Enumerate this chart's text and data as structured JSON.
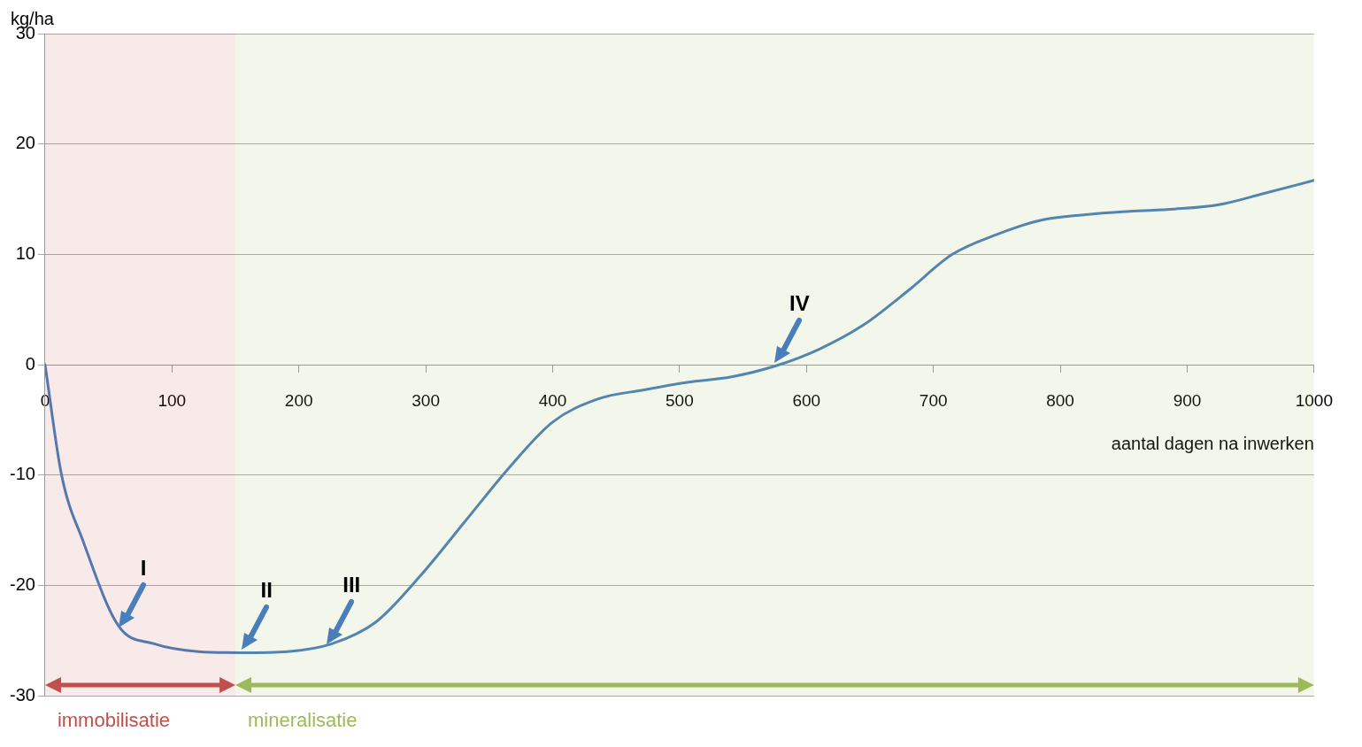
{
  "chart_data": {
    "type": "line",
    "ylabel": "kg/ha",
    "xlabel": "aantal dagen na inwerken",
    "x": [
      0,
      13,
      30,
      58,
      86,
      121,
      156,
      191,
      226,
      261,
      296,
      331,
      366,
      400,
      436,
      471,
      506,
      541,
      576,
      610,
      645,
      680,
      715,
      750,
      785,
      820,
      855,
      890,
      925,
      960,
      1000
    ],
    "series": [
      {
        "color": "#4a7ebb",
        "values": [
          0,
          -10,
          -16,
          -23.7,
          -25.3,
          -26,
          -26.1,
          -26,
          -25.3,
          -23.3,
          -19.1,
          -14.2,
          -9.3,
          -5.2,
          -3.1,
          -2.3,
          -1.6,
          -1.1,
          -0.1,
          1.4,
          3.6,
          6.7,
          10,
          11.8,
          13.1,
          13.6,
          13.9,
          14.1,
          14.5,
          15.5,
          16.7
        ]
      }
    ],
    "xlim": [
      0,
      1000
    ],
    "xticks": [
      0,
      100,
      200,
      300,
      400,
      500,
      600,
      700,
      800,
      900,
      1000
    ],
    "ylim": [
      -30,
      30
    ],
    "yticks": [
      -30,
      -20,
      -10,
      0,
      10,
      20,
      30
    ],
    "grid": "y",
    "marker": "none",
    "line_style": "solid",
    "legend": false,
    "annotations": [
      {
        "text": "I",
        "x": 58,
        "y": -24
      },
      {
        "text": "II",
        "x": 155,
        "y": -26
      },
      {
        "text": "III",
        "x": 222,
        "y": -25.5
      },
      {
        "text": "IV",
        "x": 575,
        "y": 0
      }
    ],
    "bands": [
      {
        "axis": "x",
        "from": 0,
        "to": 150,
        "label": "immobilisatie",
        "color": "#c0504d"
      },
      {
        "axis": "x",
        "from": 150,
        "to": 1000,
        "label": "mineralisatie",
        "color": "#9bbb59"
      }
    ]
  }
}
